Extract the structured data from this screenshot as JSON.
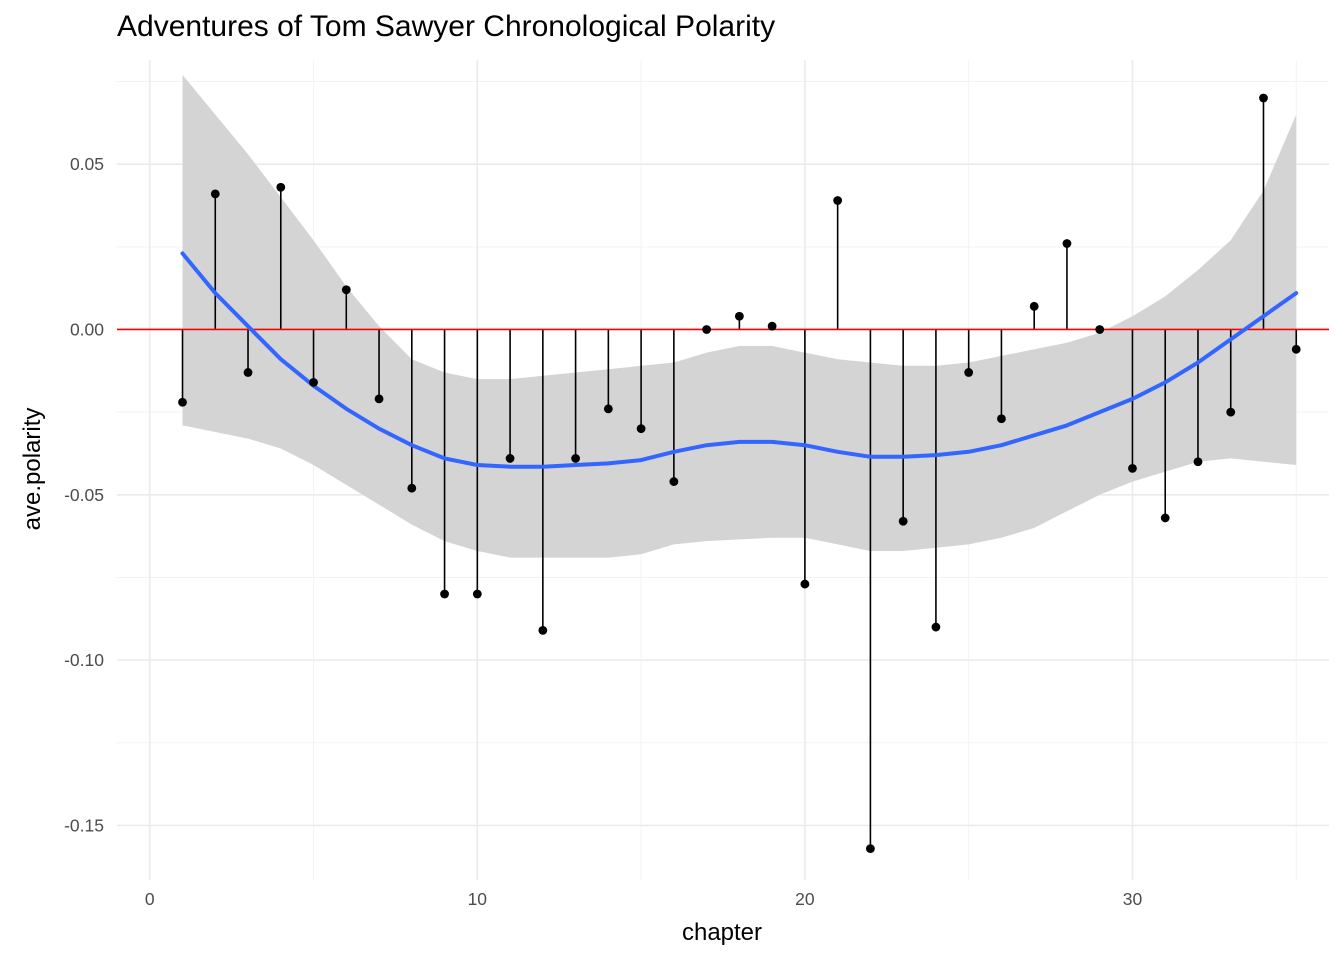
{
  "chart_data": {
    "type": "lollipop-line",
    "title": "Adventures of Tom Sawyer Chronological Polarity",
    "xlabel": "chapter",
    "ylabel": "ave.polarity",
    "xlim": [
      -1,
      36
    ],
    "ylim": [
      -0.1665,
      0.0815
    ],
    "x_ticks": [
      0,
      10,
      20,
      30
    ],
    "x_tick_labels": [
      "0",
      "10",
      "20",
      "30"
    ],
    "y_ticks": [
      0.05,
      0.0,
      -0.05,
      -0.1,
      -0.15
    ],
    "y_tick_labels": [
      "0.05",
      "0.00",
      "-0.05",
      "-0.10",
      "-0.15"
    ],
    "grid": true,
    "reference_line": {
      "y": 0,
      "color": "#ff0000"
    },
    "series": [
      {
        "type": "lollipop",
        "color": "#000000",
        "x": [
          1,
          2,
          3,
          4,
          5,
          6,
          7,
          8,
          9,
          10,
          11,
          12,
          13,
          14,
          15,
          16,
          17,
          18,
          19,
          20,
          21,
          22,
          23,
          24,
          25,
          26,
          27,
          28,
          29,
          30,
          31,
          32,
          33,
          34,
          35
        ],
        "values": [
          -0.022,
          0.041,
          -0.013,
          0.043,
          -0.016,
          0.012,
          -0.021,
          -0.048,
          -0.08,
          -0.08,
          -0.039,
          -0.091,
          -0.039,
          -0.024,
          -0.03,
          -0.046,
          0.0,
          0.004,
          0.001,
          -0.077,
          0.039,
          -0.157,
          -0.058,
          -0.09,
          -0.013,
          -0.027,
          0.007,
          0.026,
          0.0,
          -0.042,
          -0.057,
          -0.04,
          -0.025,
          0.07,
          -0.006
        ]
      },
      {
        "type": "smooth",
        "color": "#3366ff",
        "band_color": "#d4d4d4",
        "x": [
          1,
          2,
          3,
          4,
          5,
          6,
          7,
          8,
          9,
          10,
          11,
          12,
          13,
          14,
          15,
          16,
          17,
          18,
          19,
          20,
          21,
          22,
          23,
          24,
          25,
          26,
          27,
          28,
          29,
          30,
          31,
          32,
          33,
          34,
          35
        ],
        "values": [
          0.023,
          0.011,
          0.001,
          -0.009,
          -0.017,
          -0.024,
          -0.03,
          -0.035,
          -0.039,
          -0.041,
          -0.0415,
          -0.0415,
          -0.041,
          -0.0405,
          -0.0395,
          -0.037,
          -0.035,
          -0.034,
          -0.034,
          -0.035,
          -0.037,
          -0.0385,
          -0.0385,
          -0.038,
          -0.037,
          -0.035,
          -0.032,
          -0.029,
          -0.025,
          -0.021,
          -0.016,
          -0.01,
          -0.003,
          0.004,
          0.011
        ],
        "lower": [
          -0.029,
          -0.031,
          -0.033,
          -0.036,
          -0.041,
          -0.047,
          -0.053,
          -0.059,
          -0.064,
          -0.067,
          -0.069,
          -0.069,
          -0.069,
          -0.069,
          -0.068,
          -0.065,
          -0.064,
          -0.0635,
          -0.063,
          -0.063,
          -0.065,
          -0.067,
          -0.067,
          -0.066,
          -0.065,
          -0.063,
          -0.06,
          -0.055,
          -0.05,
          -0.046,
          -0.043,
          -0.04,
          -0.039,
          -0.04,
          -0.041
        ],
        "upper": [
          0.077,
          0.065,
          0.053,
          0.04,
          0.027,
          0.013,
          0.001,
          -0.009,
          -0.013,
          -0.015,
          -0.015,
          -0.014,
          -0.013,
          -0.012,
          -0.011,
          -0.01,
          -0.007,
          -0.005,
          -0.005,
          -0.007,
          -0.009,
          -0.01,
          -0.011,
          -0.011,
          -0.01,
          -0.008,
          -0.006,
          -0.004,
          -0.001,
          0.004,
          0.01,
          0.018,
          0.027,
          0.042,
          0.065
        ]
      }
    ]
  }
}
